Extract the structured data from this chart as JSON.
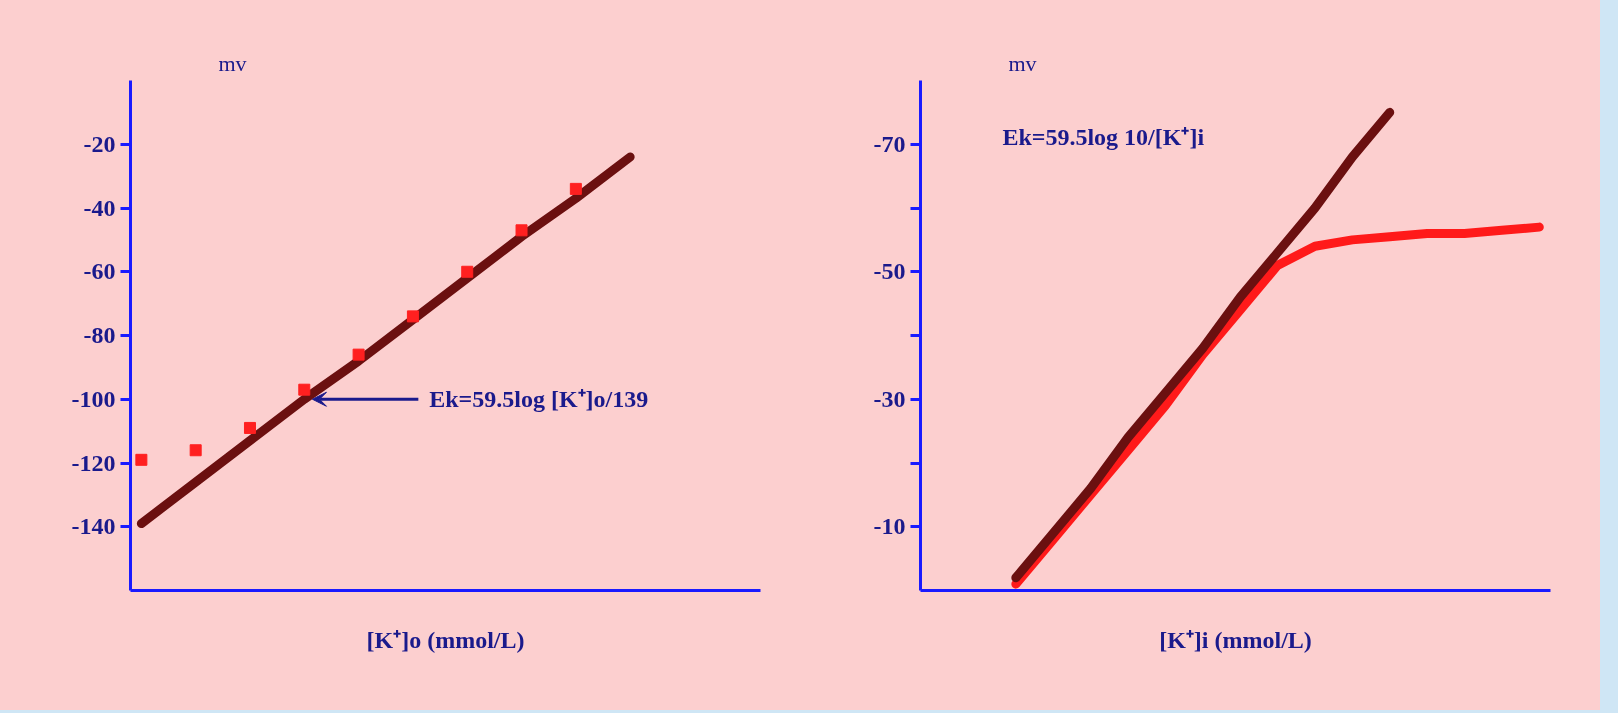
{
  "chart_data": [
    {
      "type": "line",
      "xlabel": "[K⁺]o (mmol/L)",
      "ylabel": "mv",
      "categories": [
        null,
        null,
        null,
        null,
        null,
        null,
        null,
        null,
        null,
        null
      ],
      "ylim": [
        -160,
        0
      ],
      "yticks": [
        -20,
        -40,
        -60,
        -80,
        -100,
        -120,
        -140
      ],
      "grid": false,
      "tick_labels": "y",
      "series": [
        {
          "type": "scatter",
          "marker": "square",
          "color": "#ff2020",
          "values": [
            -119,
            -116,
            -109,
            -97,
            -86,
            -74,
            -60,
            -47,
            -34,
            null
          ]
        },
        {
          "color": "#6b1010",
          "values": [
            -139,
            -126,
            -113,
            -100,
            -88,
            -75,
            -62,
            -49,
            -37,
            -24
          ]
        }
      ],
      "annotations": [
        "Ek=59.5log [K⁺]o/139"
      ]
    },
    {
      "type": "line",
      "xlabel": "[K⁺]i (mmol/L)",
      "ylabel": "mv",
      "categories": [
        null,
        null,
        null,
        null,
        null,
        null,
        null,
        null,
        null,
        null,
        null,
        null,
        null,
        null,
        null
      ],
      "ylim": [
        0,
        -80
      ],
      "yticks": [
        -70,
        -50,
        -30,
        -10
      ],
      "grid": false,
      "tick_labels": "y",
      "series": [
        {
          "color": "#ff1a1a",
          "values": [
            -1,
            -8,
            -15,
            -22,
            -29,
            -37,
            -44,
            -51,
            -54,
            -55,
            -55.5,
            -56,
            -56,
            -56.5,
            -57
          ]
        },
        {
          "color": "#6b1010",
          "values": [
            -2,
            -9,
            -16,
            -24,
            -31,
            -38,
            -46,
            -53,
            -60,
            -68,
            -75,
            null,
            null,
            null,
            null
          ]
        }
      ],
      "annotations": [
        "Ek=59.5log 10/[K⁺]i"
      ]
    }
  ]
}
